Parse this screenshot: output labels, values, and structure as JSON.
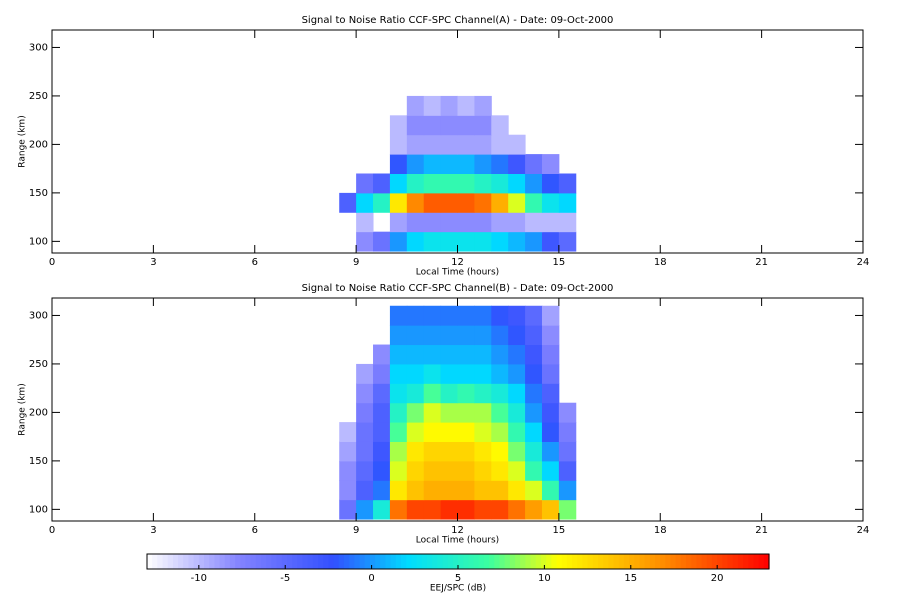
{
  "chart_data": [
    {
      "type": "heatmap",
      "title": "Signal to Noise Ratio CCF-SPC Channel(A) - Date: 09-Oct-2000",
      "xlabel": "Local Time (hours)",
      "ylabel": "Range (km)",
      "xlim": [
        0,
        24
      ],
      "xticks": [
        0,
        3,
        6,
        9,
        12,
        15,
        18,
        21,
        24
      ],
      "ylim": [
        88,
        318
      ],
      "yticks": [
        100,
        150,
        200,
        250,
        300
      ],
      "x": [
        8,
        8.5,
        9,
        9.5,
        10,
        10.5,
        11,
        11.5,
        12,
        12.5,
        13,
        13.5,
        14,
        14.5,
        15,
        15.5
      ],
      "y": [
        90,
        110,
        130,
        150,
        170,
        190,
        210,
        230,
        250,
        270,
        290,
        310
      ],
      "z": [
        [
          null,
          null,
          -8,
          -6,
          0,
          2,
          3,
          3,
          3,
          3,
          2,
          1,
          0,
          -3,
          -5
        ],
        [
          null,
          null,
          -10,
          null,
          -9,
          -8,
          -8,
          -8,
          -8,
          -8,
          -9,
          -9,
          -10,
          -10,
          -10
        ],
        [
          null,
          -4,
          2,
          5,
          12,
          17,
          19,
          19,
          19,
          18,
          15,
          10,
          6,
          3,
          2
        ],
        [
          null,
          null,
          -6,
          -4,
          2,
          5,
          6,
          6,
          6,
          5,
          4,
          2,
          0,
          -2,
          -4
        ],
        [
          null,
          null,
          null,
          null,
          -2,
          0,
          1,
          1,
          1,
          0,
          -1,
          -3,
          -6,
          -8,
          null
        ],
        [
          null,
          null,
          null,
          null,
          -10,
          -9,
          -9,
          -9,
          -9,
          -9,
          -10,
          -10,
          null,
          null,
          null
        ],
        [
          null,
          null,
          null,
          null,
          -10,
          -8,
          -8,
          -8,
          -8,
          -8,
          -10,
          null,
          null,
          null,
          null
        ],
        [
          null,
          null,
          null,
          null,
          null,
          -9,
          -10,
          -9,
          -10,
          -9,
          null,
          null,
          null,
          null,
          null
        ],
        [
          null,
          null,
          null,
          null,
          null,
          null,
          null,
          null,
          null,
          null,
          null,
          null,
          null,
          null,
          null
        ],
        [
          null,
          null,
          null,
          null,
          null,
          null,
          null,
          null,
          null,
          null,
          null,
          null,
          null,
          null,
          null
        ],
        [
          null,
          null,
          null,
          null,
          null,
          null,
          null,
          null,
          null,
          null,
          null,
          null,
          null,
          null,
          null
        ]
      ]
    },
    {
      "type": "heatmap",
      "title": "Signal to Noise Ratio CCF-SPC Channel(B) - Date: 09-Oct-2000",
      "xlabel": "Local Time (hours)",
      "ylabel": "Range (km)",
      "xlim": [
        0,
        24
      ],
      "xticks": [
        0,
        3,
        6,
        9,
        12,
        15,
        18,
        21,
        24
      ],
      "ylim": [
        88,
        318
      ],
      "yticks": [
        100,
        150,
        200,
        250,
        300
      ],
      "x": [
        8,
        8.5,
        9,
        9.5,
        10,
        10.5,
        11,
        11.5,
        12,
        12.5,
        13,
        13.5,
        14,
        14.5,
        15,
        15.5
      ],
      "y": [
        90,
        110,
        130,
        150,
        170,
        190,
        210,
        230,
        250,
        270,
        290,
        310
      ],
      "z": [
        [
          null,
          -6,
          0,
          4,
          18,
          20,
          20,
          21,
          21,
          20,
          20,
          18,
          16,
          14,
          8
        ],
        [
          null,
          -8,
          -4,
          -1,
          12,
          14,
          15,
          15,
          15,
          14,
          14,
          12,
          10,
          6,
          0
        ],
        [
          null,
          -8,
          -5,
          -2,
          10,
          13,
          14,
          14,
          14,
          13,
          12,
          10,
          6,
          2,
          -4
        ],
        [
          null,
          -9,
          -6,
          -3,
          9,
          12,
          13,
          13,
          13,
          12,
          11,
          8,
          4,
          0,
          -6
        ],
        [
          null,
          -10,
          -6,
          -4,
          7,
          10,
          11,
          11,
          11,
          10,
          9,
          6,
          2,
          -2,
          -7
        ],
        [
          null,
          null,
          -7,
          -4,
          5,
          8,
          10,
          9,
          9,
          9,
          7,
          4,
          0,
          -3,
          -8
        ],
        [
          null,
          null,
          -8,
          -5,
          3,
          4,
          7,
          5,
          6,
          5,
          4,
          2,
          -1,
          -4,
          null
        ],
        [
          null,
          null,
          -9,
          -7,
          2,
          2,
          3,
          2,
          2,
          2,
          1,
          0,
          -2,
          -6,
          null
        ],
        [
          null,
          null,
          null,
          -8,
          1,
          1,
          1,
          1,
          1,
          1,
          0,
          -1,
          -3,
          -7,
          null
        ],
        [
          null,
          null,
          null,
          null,
          0,
          0,
          0,
          0,
          0,
          0,
          -1,
          -2,
          -4,
          -8,
          null
        ],
        [
          null,
          null,
          null,
          null,
          -1,
          -1,
          -1,
          -1,
          -1,
          -1,
          -2,
          -3,
          -5,
          -9,
          null
        ]
      ]
    }
  ],
  "colorbar": {
    "label": "EEJ/SPC (dB)",
    "lim": [
      -13,
      23
    ],
    "ticks": [
      -10,
      -5,
      0,
      5,
      10,
      15,
      20
    ]
  }
}
